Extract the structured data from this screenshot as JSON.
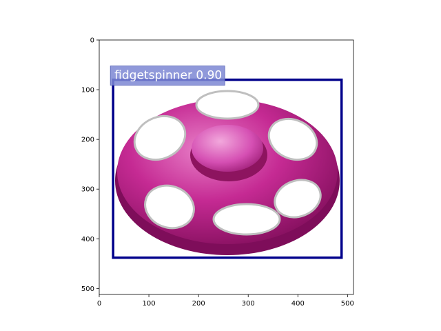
{
  "image": {
    "width": 512,
    "height": 512,
    "subject": "fidgetspinner",
    "colors": {
      "body": "#c2258f",
      "body_light": "#e06cc2",
      "body_dark": "#7e0d5a",
      "cap": "#d94bb5",
      "inner_metal": "#c8c8c8"
    }
  },
  "axes": {
    "x_ticks": [
      "0",
      "100",
      "200",
      "300",
      "400",
      "500"
    ],
    "x_tick_values": [
      0,
      100,
      200,
      300,
      400,
      500
    ],
    "y_ticks": [
      "0",
      "100",
      "200",
      "300",
      "400",
      "500"
    ],
    "y_tick_values": [
      0,
      100,
      200,
      300,
      400,
      500
    ],
    "xlim": [
      0,
      512
    ],
    "ylim": [
      512,
      0
    ]
  },
  "detection": {
    "label": "fidgetspinner 0.90",
    "class": "fidgetspinner",
    "score": 0.9,
    "box": {
      "x1": 28,
      "y1": 80,
      "x2": 488,
      "y2": 438
    },
    "box_color": "#00008b",
    "label_bg": "#7c87d3"
  }
}
